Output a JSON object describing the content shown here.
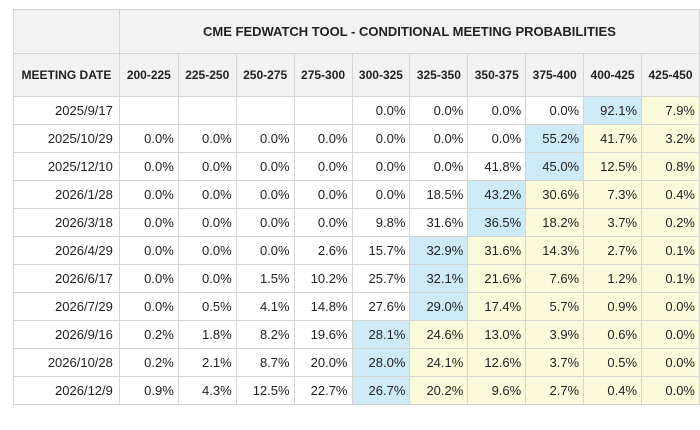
{
  "title": "CME FEDWATCH TOOL - CONDITIONAL MEETING PROBABILITIES",
  "date_header": "MEETING DATE",
  "columns": [
    "200-225",
    "225-250",
    "250-275",
    "275-300",
    "300-325",
    "325-350",
    "350-375",
    "375-400",
    "400-425",
    "425-450"
  ],
  "rows": [
    {
      "date": "2025/9/17",
      "values": [
        "",
        "",
        "",
        "",
        "0.0%",
        "0.0%",
        "0.0%",
        "0.0%",
        "92.1%",
        "7.9%"
      ],
      "peak": 8
    },
    {
      "date": "2025/10/29",
      "values": [
        "0.0%",
        "0.0%",
        "0.0%",
        "0.0%",
        "0.0%",
        "0.0%",
        "0.0%",
        "55.2%",
        "41.7%",
        "3.2%"
      ],
      "peak": 7
    },
    {
      "date": "2025/12/10",
      "values": [
        "0.0%",
        "0.0%",
        "0.0%",
        "0.0%",
        "0.0%",
        "0.0%",
        "41.8%",
        "45.0%",
        "12.5%",
        "0.8%"
      ],
      "peak": 7
    },
    {
      "date": "2026/1/28",
      "values": [
        "0.0%",
        "0.0%",
        "0.0%",
        "0.0%",
        "0.0%",
        "18.5%",
        "43.2%",
        "30.6%",
        "7.3%",
        "0.4%"
      ],
      "peak": 6
    },
    {
      "date": "2026/3/18",
      "values": [
        "0.0%",
        "0.0%",
        "0.0%",
        "0.0%",
        "9.8%",
        "31.6%",
        "36.5%",
        "18.2%",
        "3.7%",
        "0.2%"
      ],
      "peak": 6
    },
    {
      "date": "2026/4/29",
      "values": [
        "0.0%",
        "0.0%",
        "0.0%",
        "2.6%",
        "15.7%",
        "32.9%",
        "31.6%",
        "14.3%",
        "2.7%",
        "0.1%"
      ],
      "peak": 5
    },
    {
      "date": "2026/6/17",
      "values": [
        "0.0%",
        "0.0%",
        "1.5%",
        "10.2%",
        "25.7%",
        "32.1%",
        "21.6%",
        "7.6%",
        "1.2%",
        "0.1%"
      ],
      "peak": 5
    },
    {
      "date": "2026/7/29",
      "values": [
        "0.0%",
        "0.5%",
        "4.1%",
        "14.8%",
        "27.6%",
        "29.0%",
        "17.4%",
        "5.7%",
        "0.9%",
        "0.0%"
      ],
      "peak": 5
    },
    {
      "date": "2026/9/16",
      "values": [
        "0.2%",
        "1.8%",
        "8.2%",
        "19.6%",
        "28.1%",
        "24.6%",
        "13.0%",
        "3.9%",
        "0.6%",
        "0.0%"
      ],
      "peak": 4
    },
    {
      "date": "2026/10/28",
      "values": [
        "0.2%",
        "2.1%",
        "8.7%",
        "20.0%",
        "28.0%",
        "24.1%",
        "12.6%",
        "3.7%",
        "0.5%",
        "0.0%"
      ],
      "peak": 4
    },
    {
      "date": "2026/12/9",
      "values": [
        "0.9%",
        "4.3%",
        "12.5%",
        "22.7%",
        "26.7%",
        "20.2%",
        "9.6%",
        "2.7%",
        "0.4%",
        "0.0%"
      ],
      "peak": 4
    }
  ],
  "colors": {
    "peak_cell": "#cdeaf7",
    "above_peak_cell": "#fbfbdc",
    "header_bg": "#f2f2f2",
    "grid": "#d4d4d4"
  }
}
